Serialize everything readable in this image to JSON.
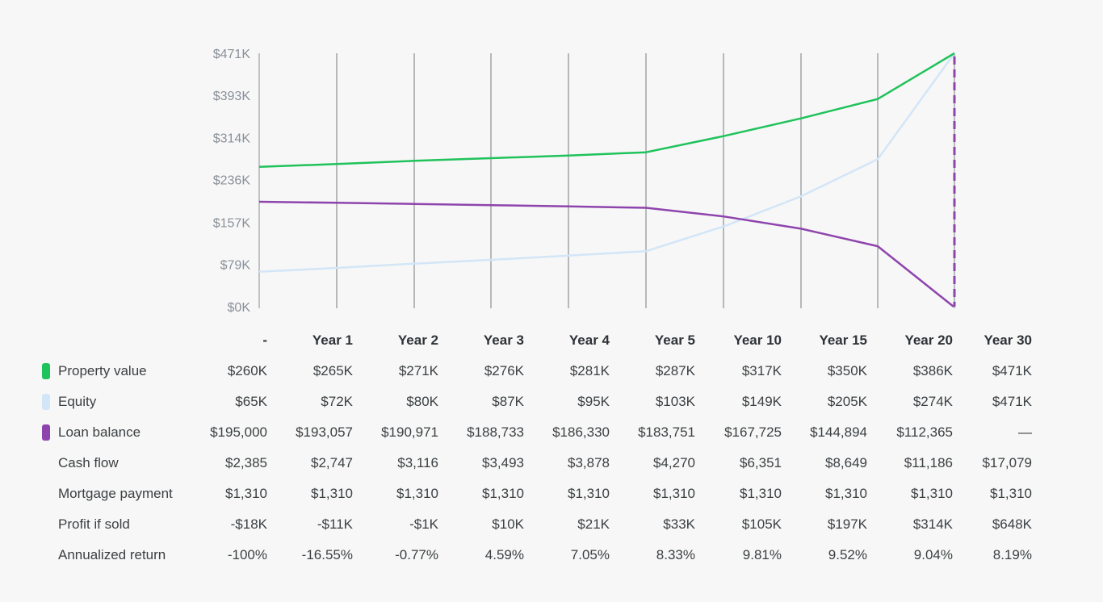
{
  "chart_data": {
    "type": "line",
    "categories": [
      "-",
      "Year 1",
      "Year 2",
      "Year 3",
      "Year 4",
      "Year 5",
      "Year 10",
      "Year 15",
      "Year 20",
      "Year 30"
    ],
    "ylim": [
      0,
      471
    ],
    "yticks": [
      "$0K",
      "$79K",
      "$157K",
      "$236K",
      "$314K",
      "$393K",
      "$471K"
    ],
    "ytick_values": [
      0,
      79,
      157,
      236,
      314,
      393,
      471
    ],
    "grid": "vertical",
    "series": [
      {
        "name": "Property value",
        "color": "#1fc25b",
        "values": [
          260,
          265,
          271,
          276,
          281,
          287,
          317,
          350,
          386,
          471
        ]
      },
      {
        "name": "Equity",
        "color": "#d3e6f7",
        "values": [
          65,
          72,
          80,
          87,
          95,
          103,
          149,
          205,
          274,
          471
        ]
      },
      {
        "name": "Loan balance",
        "color": "#8e44ad",
        "values": [
          195,
          193.057,
          190.971,
          188.733,
          186.33,
          183.751,
          167.725,
          144.894,
          112.365,
          0
        ],
        "last_segment_dashed": true
      }
    ]
  },
  "table": {
    "headers": [
      "-",
      "Year 1",
      "Year 2",
      "Year 3",
      "Year 4",
      "Year 5",
      "Year 10",
      "Year 15",
      "Year 20",
      "Year 30"
    ],
    "rows": [
      {
        "label": "Property value",
        "color": "#1fc25b",
        "cells": [
          "$260K",
          "$265K",
          "$271K",
          "$276K",
          "$281K",
          "$287K",
          "$317K",
          "$350K",
          "$386K",
          "$471K"
        ]
      },
      {
        "label": "Equity",
        "color": "#d3e6f7",
        "cells": [
          "$65K",
          "$72K",
          "$80K",
          "$87K",
          "$95K",
          "$103K",
          "$149K",
          "$205K",
          "$274K",
          "$471K"
        ]
      },
      {
        "label": "Loan balance",
        "color": "#8e44ad",
        "cells": [
          "$195,000",
          "$193,057",
          "$190,971",
          "$188,733",
          "$186,330",
          "$183,751",
          "$167,725",
          "$144,894",
          "$112,365",
          "—"
        ]
      },
      {
        "label": "Cash flow",
        "cells": [
          "$2,385",
          "$2,747",
          "$3,116",
          "$3,493",
          "$3,878",
          "$4,270",
          "$6,351",
          "$8,649",
          "$11,186",
          "$17,079"
        ]
      },
      {
        "label": "Mortgage payment",
        "cells": [
          "$1,310",
          "$1,310",
          "$1,310",
          "$1,310",
          "$1,310",
          "$1,310",
          "$1,310",
          "$1,310",
          "$1,310",
          "$1,310"
        ]
      },
      {
        "label": "Profit if sold",
        "cells": [
          "-$18K",
          "-$11K",
          "-$1K",
          "$10K",
          "$21K",
          "$33K",
          "$105K",
          "$197K",
          "$314K",
          "$648K"
        ]
      },
      {
        "label": "Annualized return",
        "cells": [
          "-100%",
          "-16.55%",
          "-0.77%",
          "4.59%",
          "7.05%",
          "8.33%",
          "9.81%",
          "9.52%",
          "9.04%",
          "8.19%"
        ]
      }
    ]
  }
}
